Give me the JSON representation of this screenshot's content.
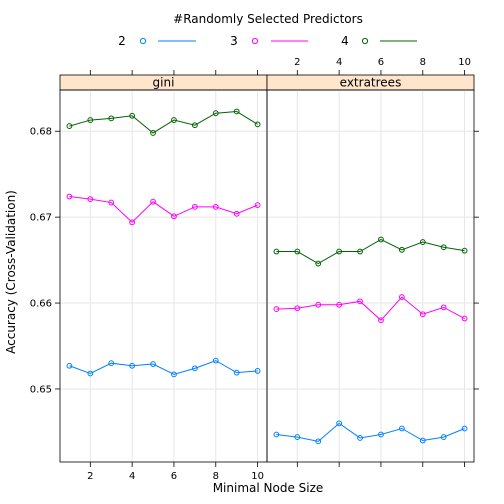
{
  "chart_data": {
    "type": "line",
    "legend": {
      "title": "#Randomly Selected Predictors",
      "placement": "top"
    },
    "xlabel": "Minimal Node Size",
    "ylabel": "Accuracy (Cross-Validation)",
    "x": [
      1,
      2,
      3,
      4,
      5,
      6,
      7,
      8,
      9,
      10
    ],
    "xticks": [
      2,
      4,
      6,
      8,
      10
    ],
    "xlim": [
      0.55,
      10.45
    ],
    "yticks": [
      0.65,
      0.66,
      0.67,
      0.68
    ],
    "ytick_labels": [
      "0.65",
      "0.66",
      "0.67",
      "0.68"
    ],
    "ylim": [
      0.6415,
      0.6848
    ],
    "grid": true,
    "series": [
      {
        "name": "2",
        "color": "#0080ff"
      },
      {
        "name": "3",
        "color": "#ff00ff"
      },
      {
        "name": "4",
        "color": "#006400"
      }
    ],
    "panels": [
      {
        "strip": "gini",
        "values": {
          "2": [
            0.6527,
            0.6518,
            0.653,
            0.6527,
            0.6529,
            0.6517,
            0.6524,
            0.6533,
            0.6519,
            0.6521
          ],
          "3": [
            0.6724,
            0.6721,
            0.6717,
            0.6694,
            0.6718,
            0.6701,
            0.6712,
            0.6712,
            0.6704,
            0.6714
          ],
          "4": [
            0.6806,
            0.6813,
            0.6815,
            0.6818,
            0.6798,
            0.6813,
            0.6807,
            0.6821,
            0.6823,
            0.6808
          ]
        }
      },
      {
        "strip": "extratrees",
        "values": {
          "2": [
            0.6447,
            0.6444,
            0.6439,
            0.646,
            0.6443,
            0.6447,
            0.6454,
            0.644,
            0.6444,
            0.6454
          ],
          "3": [
            0.6593,
            0.6594,
            0.6598,
            0.6598,
            0.6602,
            0.658,
            0.6607,
            0.6587,
            0.6595,
            0.6582
          ],
          "4": [
            0.666,
            0.666,
            0.6646,
            0.666,
            0.666,
            0.6674,
            0.6662,
            0.6671,
            0.6665,
            0.6661
          ]
        }
      }
    ]
  }
}
